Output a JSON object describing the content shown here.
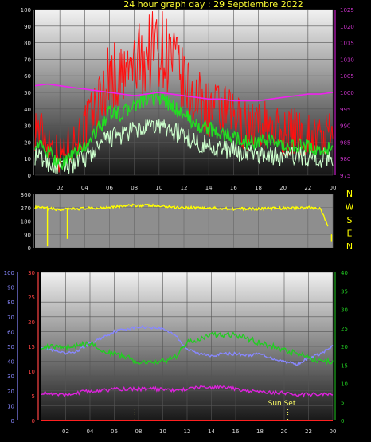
{
  "header": {
    "title": "24 hour graph day : 29 Septiembre 2022"
  },
  "colors": {
    "title": "#ffff33",
    "wind_gust": "#ff1010",
    "wind_avg": "#22dd22",
    "wind_min": "#ccffcc",
    "pressure": "#ee22ee",
    "direction": "#ffff00",
    "humidity": "#8888ff",
    "temperature": "#22cc22",
    "dewpoint": "#dd22dd",
    "rain": "#ff2020",
    "left_axis_text": "#8888ff",
    "left_axis2_text": "#ff4444",
    "right_axis_text": "#22cc22",
    "pressure_axis_text": "#cc33cc",
    "tick_text": "#dddddd",
    "sun_marker": "#ffff66"
  },
  "chart_data": [
    {
      "id": "wind",
      "type": "line",
      "title": "24 hour graph day : 29 Septiembre 2022",
      "xlabel": "",
      "x_ticks": [
        "02",
        "04",
        "06",
        "08",
        "10",
        "12",
        "14",
        "16",
        "18",
        "20",
        "22",
        "00"
      ],
      "y_left": {
        "min": 0,
        "max": 100,
        "ticks": [
          0,
          10,
          20,
          30,
          40,
          50,
          60,
          70,
          80,
          90,
          100
        ]
      },
      "y_right": {
        "min": 975,
        "max": 1025,
        "ticks": [
          975,
          980,
          985,
          990,
          995,
          1000,
          1005,
          1010,
          1015,
          1020,
          1025
        ]
      },
      "grid": true,
      "x_hours": [
        0,
        1,
        2,
        3,
        4,
        5,
        6,
        7,
        8,
        9,
        10,
        11,
        12,
        13,
        14,
        15,
        16,
        17,
        18,
        19,
        20,
        21,
        22,
        23,
        24
      ],
      "series": [
        {
          "key": "gust",
          "axis": "left",
          "values": [
            30,
            22,
            12,
            20,
            28,
            42,
            60,
            58,
            66,
            72,
            80,
            70,
            55,
            45,
            40,
            38,
            35,
            30,
            30,
            30,
            25,
            27,
            25,
            22,
            24
          ]
        },
        {
          "key": "avg",
          "axis": "left",
          "values": [
            20,
            14,
            7,
            12,
            17,
            27,
            38,
            37,
            42,
            45,
            47,
            42,
            37,
            30,
            28,
            25,
            23,
            20,
            20,
            20,
            17,
            18,
            17,
            15,
            16
          ]
        },
        {
          "key": "low",
          "axis": "left",
          "values": [
            12,
            8,
            4,
            7,
            10,
            16,
            23,
            24,
            27,
            28,
            30,
            27,
            24,
            20,
            18,
            16,
            15,
            13,
            13,
            12,
            11,
            12,
            11,
            10,
            11
          ]
        },
        {
          "key": "pressure",
          "axis": "right",
          "values": [
            1002,
            1002.5,
            1002,
            1001.5,
            1001,
            1000.5,
            1000,
            999.5,
            999,
            999.5,
            1000,
            999.5,
            999,
            998.5,
            998,
            998,
            997.5,
            997.5,
            997.5,
            998,
            998.5,
            999,
            999.5,
            999.5,
            1000
          ]
        }
      ]
    },
    {
      "id": "direction",
      "type": "line",
      "right_labels": [
        "N",
        "W",
        "S",
        "E",
        "N"
      ],
      "y_left": {
        "min": 0,
        "max": 360,
        "ticks": [
          0,
          90,
          180,
          270,
          360
        ]
      },
      "grid": true,
      "x_hours": [
        0,
        1,
        2,
        3,
        4,
        5,
        6,
        7,
        8,
        9,
        10,
        11,
        12,
        13,
        14,
        15,
        16,
        17,
        18,
        19,
        20,
        21,
        22,
        23,
        24
      ],
      "series": [
        {
          "key": "direction",
          "values": [
            270,
            265,
            255,
            260,
            265,
            265,
            275,
            280,
            285,
            285,
            280,
            275,
            270,
            270,
            265,
            265,
            262,
            262,
            262,
            265,
            265,
            268,
            270,
            265,
            60
          ]
        }
      ],
      "dips": [
        {
          "hour": 1.0,
          "value": 10
        },
        {
          "hour": 2.6,
          "value": 60
        },
        {
          "hour": 23.9,
          "value": 40
        }
      ]
    },
    {
      "id": "climate",
      "type": "line",
      "x_ticks": [
        "02",
        "04",
        "06",
        "08",
        "10",
        "12",
        "14",
        "16",
        "18",
        "20",
        "22",
        "00"
      ],
      "y_left": {
        "min": 0,
        "max": 100,
        "ticks": [
          0,
          10,
          20,
          30,
          40,
          50,
          60,
          70,
          80,
          90,
          100
        ]
      },
      "y_left2": {
        "min": 0,
        "max": 30,
        "ticks": [
          0,
          5,
          10,
          15,
          20,
          25,
          30
        ]
      },
      "y_right": {
        "min": 0,
        "max": 40,
        "ticks": [
          0,
          5,
          10,
          15,
          20,
          25,
          30,
          35,
          40
        ]
      },
      "grid": true,
      "sun_set_label": "Sun Set",
      "x_hours": [
        0,
        1,
        2,
        3,
        4,
        5,
        6,
        7,
        8,
        9,
        10,
        11,
        12,
        13,
        14,
        15,
        16,
        17,
        18,
        19,
        20,
        21,
        22,
        23,
        24
      ],
      "series": [
        {
          "key": "humidity",
          "axis": "left",
          "values": [
            50,
            47,
            45,
            47,
            52,
            56,
            60,
            62,
            63,
            63,
            62,
            58,
            48,
            45,
            44,
            45,
            45,
            44,
            45,
            42,
            40,
            38,
            42,
            45,
            50
          ]
        },
        {
          "key": "temperature",
          "axis": "right",
          "values": [
            20,
            20,
            20,
            20,
            21,
            19,
            18,
            17,
            16,
            16,
            16,
            17,
            21,
            22,
            23,
            23,
            23,
            22,
            21,
            20,
            19,
            18,
            17,
            16,
            16
          ]
        },
        {
          "key": "dewpoint",
          "axis": "right",
          "values": [
            7.5,
            7,
            7,
            7.5,
            8,
            8,
            8.5,
            8.5,
            8.5,
            8.5,
            8.5,
            8,
            8.5,
            9,
            9,
            9,
            8.5,
            8,
            8,
            7.5,
            7.5,
            7,
            7,
            7,
            7
          ]
        },
        {
          "key": "rain",
          "axis": "right",
          "values": [
            0,
            0,
            0,
            0,
            0,
            0,
            0,
            0,
            0,
            0,
            0,
            0,
            0,
            0,
            0,
            0,
            0,
            0,
            0,
            0,
            0,
            0,
            0,
            0,
            0
          ]
        }
      ],
      "sun_marks": [
        {
          "hour": 7.7
        },
        {
          "hour": 20.3
        }
      ]
    }
  ]
}
